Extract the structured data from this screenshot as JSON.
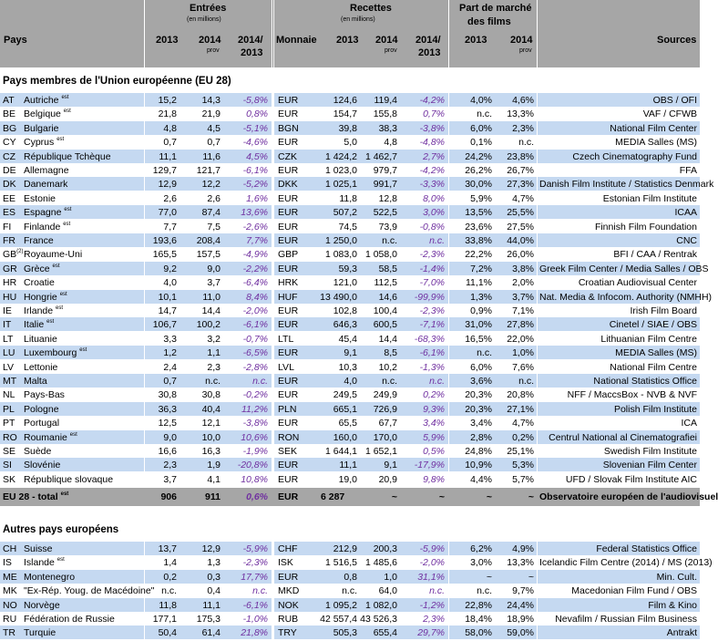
{
  "header": {
    "pays": "Pays",
    "entrees": "Entrées",
    "entrees_unit": "(en millions)",
    "recettes": "Recettes",
    "recettes_unit": "(en millions)",
    "part_line1": "Part de marché",
    "part_line2": "des films",
    "monnaie": "Monnaie",
    "y2013": "2013",
    "y2014": "2014",
    "prov": "prov",
    "ratio_line1": "2014/",
    "ratio_line2": "2013",
    "sources": "Sources"
  },
  "section_eu": {
    "title": "Pays membres de l'Union européenne (EU 28)",
    "rows": [
      {
        "code": "AT",
        "name": "Autriche",
        "sup": "est",
        "e13": "15,2",
        "e14": "14,3",
        "ep": "-5,8%",
        "cur": "EUR",
        "r13": "124,6",
        "r14": "119,4",
        "rp": "-4,2%",
        "m13": "4,0%",
        "m14": "4,6%",
        "src": "OBS / OFI"
      },
      {
        "code": "BE",
        "name": "Belgique",
        "sup": "est",
        "e13": "21,8",
        "e14": "21,9",
        "ep": "0,8%",
        "cur": "EUR",
        "r13": "154,7",
        "r14": "155,8",
        "rp": "0,7%",
        "m13": "n.c.",
        "m14": "13,3%",
        "src": "VAF / CFWB"
      },
      {
        "code": "BG",
        "name": "Bulgarie",
        "sup": "",
        "e13": "4,8",
        "e14": "4,5",
        "ep": "-5,1%",
        "cur": "BGN",
        "r13": "39,8",
        "r14": "38,3",
        "rp": "-3,8%",
        "m13": "6,0%",
        "m14": "2,3%",
        "src": "National Film Center"
      },
      {
        "code": "CY",
        "name": "Cyprus",
        "sup": "est",
        "e13": "0,7",
        "e14": "0,7",
        "ep": "-4,6%",
        "cur": "EUR",
        "r13": "5,0",
        "r14": "4,8",
        "rp": "-4,8%",
        "m13": "0,1%",
        "m14": "n.c.",
        "src": "MEDIA Salles (MS)"
      },
      {
        "code": "CZ",
        "name": "République Tchèque",
        "sup": "",
        "e13": "11,1",
        "e14": "11,6",
        "ep": "4,5%",
        "cur": "CZK",
        "r13": "1 424,2",
        "r14": "1 462,7",
        "rp": "2,7%",
        "m13": "24,2%",
        "m14": "23,8%",
        "src": "Czech Cinematography Fund"
      },
      {
        "code": "DE",
        "name": "Allemagne",
        "sup": "",
        "e13": "129,7",
        "e14": "121,7",
        "ep": "-6,1%",
        "cur": "EUR",
        "r13": "1 023,0",
        "r14": "979,7",
        "rp": "-4,2%",
        "m13": "26,2%",
        "m14": "26,7%",
        "src": "FFA"
      },
      {
        "code": "DK",
        "name": "Danemark",
        "sup": "",
        "e13": "12,9",
        "e14": "12,2",
        "ep": "-5,2%",
        "cur": "DKK",
        "r13": "1 025,1",
        "r14": "991,7",
        "rp": "-3,3%",
        "m13": "30,0%",
        "m14": "27,3%",
        "src": "Danish Film Institute / Statistics Denmark"
      },
      {
        "code": "EE",
        "name": "Estonie",
        "sup": "",
        "e13": "2,6",
        "e14": "2,6",
        "ep": "1,6%",
        "cur": "EUR",
        "r13": "11,8",
        "r14": "12,8",
        "rp": "8,0%",
        "m13": "5,9%",
        "m14": "4,7%",
        "src": "Estonian Film Institute"
      },
      {
        "code": "ES",
        "name": "Espagne",
        "sup": "est",
        "e13": "77,0",
        "e14": "87,4",
        "ep": "13,6%",
        "cur": "EUR",
        "r13": "507,2",
        "r14": "522,5",
        "rp": "3,0%",
        "m13": "13,5%",
        "m14": "25,5%",
        "src": "ICAA"
      },
      {
        "code": "FI",
        "name": "Finlande",
        "sup": "est",
        "e13": "7,7",
        "e14": "7,5",
        "ep": "-2,6%",
        "cur": "EUR",
        "r13": "74,5",
        "r14": "73,9",
        "rp": "-0,8%",
        "m13": "23,6%",
        "m14": "27,5%",
        "src": "Finnish Film Foundation"
      },
      {
        "code": "FR",
        "name": "France",
        "sup": "",
        "e13": "193,6",
        "e14": "208,4",
        "ep": "7,7%",
        "cur": "EUR",
        "r13": "1 250,0",
        "r14": "n.c.",
        "rp": "n.c.",
        "m13": "33,8%",
        "m14": "44,0%",
        "src": "CNC"
      },
      {
        "code": "GB",
        "codesup": "(2)",
        "name": "Royaume-Uni",
        "sup": "",
        "e13": "165,5",
        "e14": "157,5",
        "ep": "-4,9%",
        "cur": "GBP",
        "r13": "1 083,0",
        "r14": "1 058,0",
        "rp": "-2,3%",
        "m13": "22,2%",
        "m14": "26,0%",
        "src": "BFI / CAA / Rentrak"
      },
      {
        "code": "GR",
        "name": "Grèce",
        "sup": "est",
        "e13": "9,2",
        "e14": "9,0",
        "ep": "-2,2%",
        "cur": "EUR",
        "r13": "59,3",
        "r14": "58,5",
        "rp": "-1,4%",
        "m13": "7,2%",
        "m14": "3,8%",
        "src": "Greek Film Center / Media Salles / OBS"
      },
      {
        "code": "HR",
        "name": "Croatie",
        "sup": "",
        "e13": "4,0",
        "e14": "3,7",
        "ep": "-6,4%",
        "cur": "HRK",
        "r13": "121,0",
        "r14": "112,5",
        "rp": "-7,0%",
        "m13": "11,1%",
        "m14": "2,0%",
        "src": "Croatian Audiovisual Center"
      },
      {
        "code": "HU",
        "name": "Hongrie",
        "sup": "est",
        "e13": "10,1",
        "e14": "11,0",
        "ep": "8,4%",
        "cur": "HUF",
        "r13": "13 490,0",
        "r14": "14,6",
        "rp": "-99,9%",
        "m13": "1,3%",
        "m14": "3,7%",
        "src": "Nat. Media & Infocom. Authority (NMHH)"
      },
      {
        "code": "IE",
        "name": "Irlande",
        "sup": "est",
        "e13": "14,7",
        "e14": "14,4",
        "ep": "-2,0%",
        "cur": "EUR",
        "r13": "102,8",
        "r14": "100,4",
        "rp": "-2,3%",
        "m13": "0,9%",
        "m14": "7,1%",
        "src": "Irish Film Board"
      },
      {
        "code": "IT",
        "name": "Italie",
        "sup": "est",
        "e13": "106,7",
        "e14": "100,2",
        "ep": "-6,1%",
        "cur": "EUR",
        "r13": "646,3",
        "r14": "600,5",
        "rp": "-7,1%",
        "m13": "31,0%",
        "m14": "27,8%",
        "src": "Cinetel / SIAE / OBS"
      },
      {
        "code": "LT",
        "name": "Lituanie",
        "sup": "",
        "e13": "3,3",
        "e14": "3,2",
        "ep": "-0,7%",
        "cur": "LTL",
        "r13": "45,4",
        "r14": "14,4",
        "rp": "-68,3%",
        "m13": "16,5%",
        "m14": "22,0%",
        "src": "Lithuanian Film Centre"
      },
      {
        "code": "LU",
        "name": "Luxembourg",
        "sup": "est",
        "e13": "1,2",
        "e14": "1,1",
        "ep": "-6,5%",
        "cur": "EUR",
        "r13": "9,1",
        "r14": "8,5",
        "rp": "-6,1%",
        "m13": "n.c.",
        "m14": "1,0%",
        "src": "MEDIA Salles (MS)"
      },
      {
        "code": "LV",
        "name": "Lettonie",
        "sup": "",
        "e13": "2,4",
        "e14": "2,3",
        "ep": "-2,8%",
        "cur": "LVL",
        "r13": "10,3",
        "r14": "10,2",
        "rp": "-1,3%",
        "m13": "6,0%",
        "m14": "7,6%",
        "src": "National Film Centre"
      },
      {
        "code": "MT",
        "name": "Malta",
        "sup": "",
        "e13": "0,7",
        "e14": "n.c.",
        "ep": "n.c.",
        "cur": "EUR",
        "r13": "4,0",
        "r14": "n.c.",
        "rp": "n.c.",
        "m13": "3,6%",
        "m14": "n.c.",
        "src": "National Statistics Office"
      },
      {
        "code": "NL",
        "name": "Pays-Bas",
        "sup": "",
        "e13": "30,8",
        "e14": "30,8",
        "ep": "-0,2%",
        "cur": "EUR",
        "r13": "249,5",
        "r14": "249,9",
        "rp": "0,2%",
        "m13": "20,3%",
        "m14": "20,8%",
        "src": "NFF / MaccsBox - NVB & NVF"
      },
      {
        "code": "PL",
        "name": "Pologne",
        "sup": "",
        "e13": "36,3",
        "e14": "40,4",
        "ep": "11,2%",
        "cur": "PLN",
        "r13": "665,1",
        "r14": "726,9",
        "rp": "9,3%",
        "m13": "20,3%",
        "m14": "27,1%",
        "src": "Polish Film Institute"
      },
      {
        "code": "PT",
        "name": "Portugal",
        "sup": "",
        "e13": "12,5",
        "e14": "12,1",
        "ep": "-3,8%",
        "cur": "EUR",
        "r13": "65,5",
        "r14": "67,7",
        "rp": "3,4%",
        "m13": "3,4%",
        "m14": "4,7%",
        "src": "ICA"
      },
      {
        "code": "RO",
        "name": "Roumanie",
        "sup": "est",
        "e13": "9,0",
        "e14": "10,0",
        "ep": "10,6%",
        "cur": "RON",
        "r13": "160,0",
        "r14": "170,0",
        "rp": "5,9%",
        "m13": "2,8%",
        "m14": "0,2%",
        "src": "Centrul National al Cinematografiei"
      },
      {
        "code": "SE",
        "name": "Suède",
        "sup": "",
        "e13": "16,6",
        "e14": "16,3",
        "ep": "-1,9%",
        "cur": "SEK",
        "r13": "1 644,1",
        "r14": "1 652,1",
        "rp": "0,5%",
        "m13": "24,8%",
        "m14": "25,1%",
        "src": "Swedish Film Institute"
      },
      {
        "code": "SI",
        "name": "Slovénie",
        "sup": "",
        "e13": "2,3",
        "e14": "1,9",
        "ep": "-20,8%",
        "cur": "EUR",
        "r13": "11,1",
        "r14": "9,1",
        "rp": "-17,9%",
        "m13": "10,9%",
        "m14": "5,3%",
        "src": "Slovenian Film Center"
      },
      {
        "code": "SK",
        "name": "République slovaque",
        "sup": "",
        "e13": "3,7",
        "e14": "4,1",
        "ep": "10,8%",
        "cur": "EUR",
        "r13": "19,0",
        "r14": "20,9",
        "rp": "9,8%",
        "m13": "4,4%",
        "m14": "5,7%",
        "src": "UFD / Slovak Film Institute AIC"
      }
    ],
    "total": {
      "label": "EU 28 - total",
      "sup": "est",
      "e13": "906",
      "e14": "911",
      "ep": "0,6%",
      "cur": "EUR",
      "r13": "6 287",
      "r14": "~",
      "rp": "~",
      "m13": "~",
      "m14": "~",
      "src": "Observatoire européen de l'audiovisuel"
    }
  },
  "section_other": {
    "title": "Autres pays européens",
    "rows": [
      {
        "code": "CH",
        "name": "Suisse",
        "sup": "",
        "e13": "13,7",
        "e14": "12,9",
        "ep": "-5,9%",
        "cur": "CHF",
        "r13": "212,9",
        "r14": "200,3",
        "rp": "-5,9%",
        "m13": "6,2%",
        "m14": "4,9%",
        "src": "Federal Statistics Office"
      },
      {
        "code": "IS",
        "name": "Islande",
        "sup": "est",
        "e13": "1,4",
        "e14": "1,3",
        "ep": "-2,3%",
        "cur": "ISK",
        "r13": "1 516,5",
        "r14": "1 485,6",
        "rp": "-2,0%",
        "m13": "3,0%",
        "m14": "13,3%",
        "src": "Icelandic Film Centre (2014) / MS (2013)"
      },
      {
        "code": "ME",
        "name": "Montenegro",
        "sup": "",
        "e13": "0,2",
        "e14": "0,3",
        "ep": "17,7%",
        "cur": "EUR",
        "r13": "0,8",
        "r14": "1,0",
        "rp": "31,1%",
        "m13": "~",
        "m14": "~",
        "src": "Min. Cult."
      },
      {
        "code": "MK",
        "name": "\"Ex-Rép. Youg. de Macédoine\"",
        "sup": "",
        "e13": "n.c.",
        "e14": "0,4",
        "ep": "n.c.",
        "cur": "MKD",
        "r13": "n.c.",
        "r14": "64,0",
        "rp": "n.c.",
        "m13": "n.c.",
        "m14": "9,7%",
        "src": "Macedonian Film Fund / OBS"
      },
      {
        "code": "NO",
        "name": "Norvège",
        "sup": "",
        "e13": "11,8",
        "e14": "11,1",
        "ep": "-6,1%",
        "cur": "NOK",
        "r13": "1 095,2",
        "r14": "1 082,0",
        "rp": "-1,2%",
        "m13": "22,8%",
        "m14": "24,4%",
        "src": "Film & Kino"
      },
      {
        "code": "RU",
        "name": "Fédération de Russie",
        "sup": "",
        "e13": "177,1",
        "e14": "175,3",
        "ep": "-1,0%",
        "cur": "RUB",
        "r13": "42 557,4",
        "r14": "43 526,3",
        "rp": "2,3%",
        "m13": "18,4%",
        "m14": "18,9%",
        "src": "Nevafilm / Russian Film Business"
      },
      {
        "code": "TR",
        "name": "Turquie",
        "sup": "",
        "e13": "50,4",
        "e14": "61,4",
        "ep": "21,8%",
        "cur": "TRY",
        "r13": "505,3",
        "r14": "655,4",
        "rp": "29,7%",
        "m13": "58,0%",
        "m14": "59,0%",
        "src": "Antrakt"
      }
    ]
  }
}
